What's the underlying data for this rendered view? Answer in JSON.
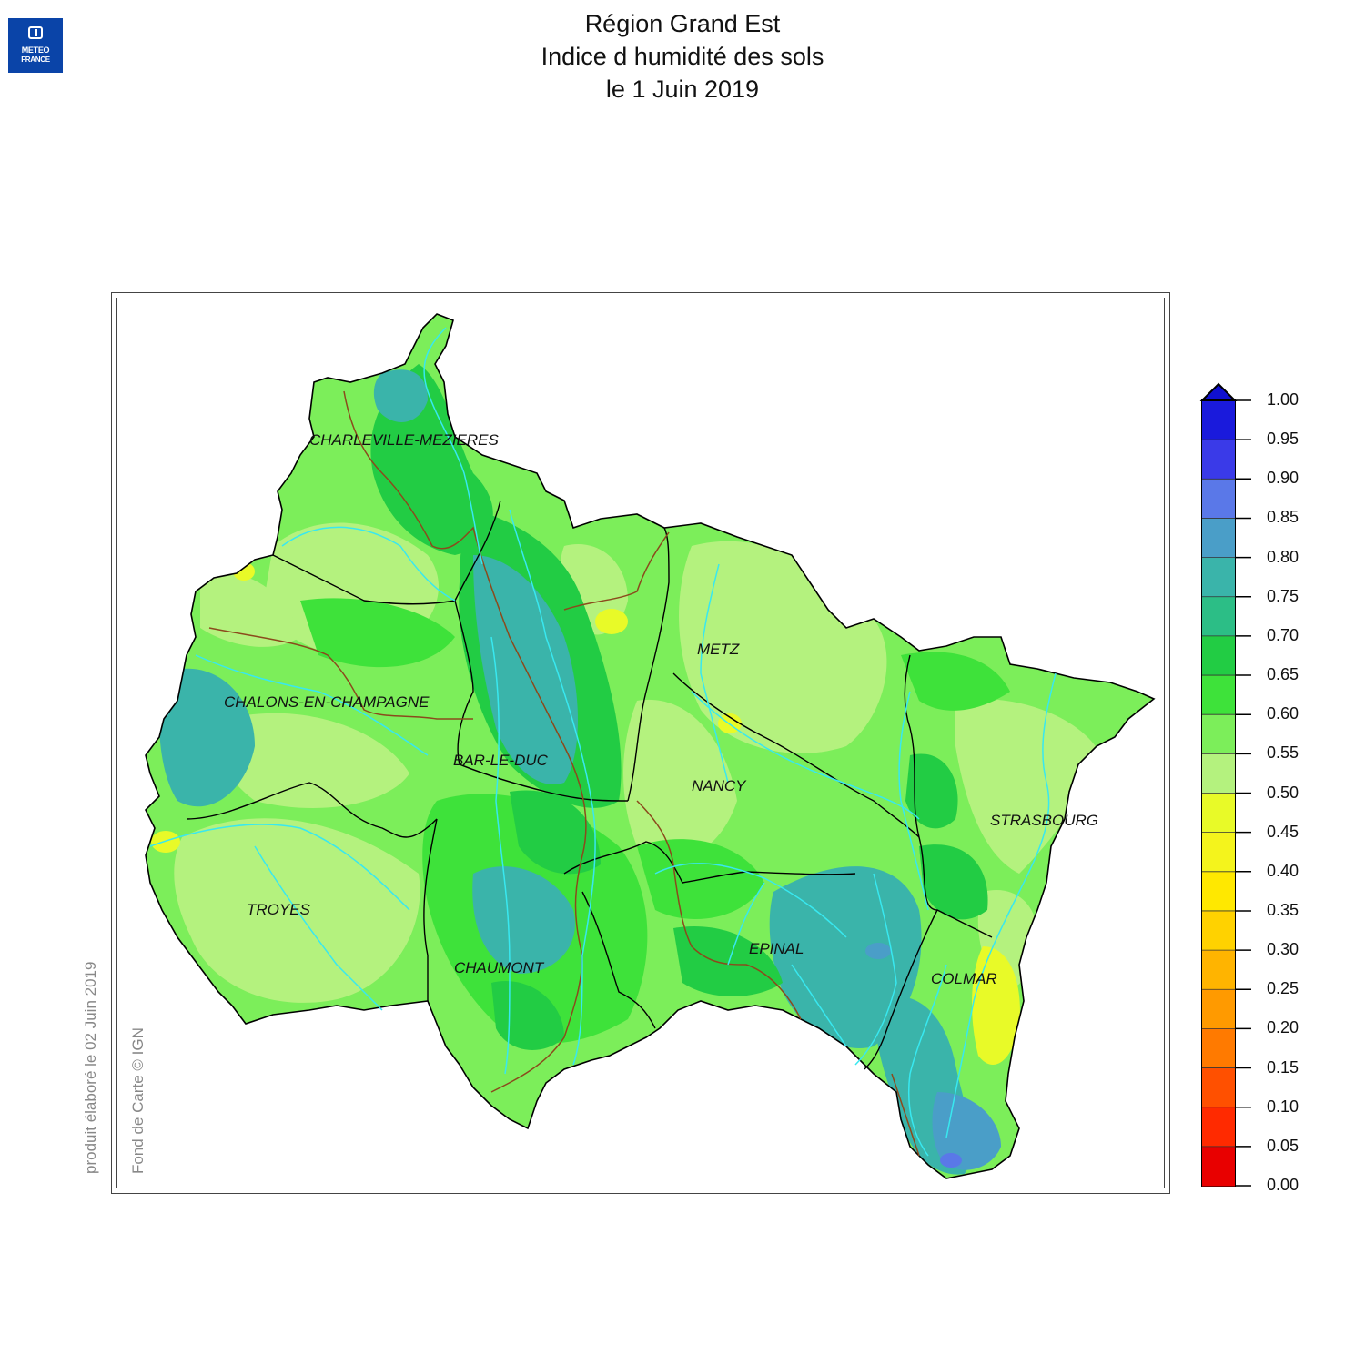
{
  "logo": {
    "line1": "METEO",
    "line2": "FRANCE"
  },
  "title": {
    "line1": "Région Grand Est",
    "line2": "Indice d humidité des sols",
    "line3": "le 1 Juin 2019"
  },
  "side_notes": {
    "produced": "produit élaboré le 02 Juin 2019",
    "credit": "Fond de Carte © IGN"
  },
  "cities": [
    {
      "key": "charleville",
      "name": "CHARLEVILLE-MEZIERES"
    },
    {
      "key": "metz",
      "name": "METZ"
    },
    {
      "key": "chalons",
      "name": "CHALONS-EN-CHAMPAGNE"
    },
    {
      "key": "barleduc",
      "name": "BAR-LE-DUC"
    },
    {
      "key": "nancy",
      "name": "NANCY"
    },
    {
      "key": "strasbourg",
      "name": "STRASBOURG"
    },
    {
      "key": "troyes",
      "name": "TROYES"
    },
    {
      "key": "epinal",
      "name": "EPINAL"
    },
    {
      "key": "chaumont",
      "name": "CHAUMONT"
    },
    {
      "key": "colmar",
      "name": "COLMAR"
    }
  ],
  "legend": {
    "labels": [
      "1.00",
      "0.95",
      "0.90",
      "0.85",
      "0.80",
      "0.75",
      "0.70",
      "0.65",
      "0.60",
      "0.55",
      "0.50",
      "0.45",
      "0.40",
      "0.35",
      "0.30",
      "0.25",
      "0.20",
      "0.15",
      "0.10",
      "0.05",
      "0.00"
    ],
    "colors_top_to_bottom": [
      "#1a1adc",
      "#3a3ae8",
      "#5a78e8",
      "#4a9ec8",
      "#3ab4aa",
      "#2cbe86",
      "#22cc44",
      "#3ee23a",
      "#7cee5a",
      "#b4f27e",
      "#e8fa28",
      "#f4f41c",
      "#ffe800",
      "#ffd200",
      "#ffb400",
      "#ff9a00",
      "#ff7a00",
      "#ff5000",
      "#ff2a00",
      "#e80000"
    ],
    "arrow_color": "#1010d0"
  },
  "colors": {
    "light_green": "#b4f27e",
    "green": "#7cee5a",
    "mid_green": "#3ee23a",
    "dark_green": "#22cc44",
    "teal": "#3ab4aa",
    "yellow": "#e8fa28",
    "river": "#38e8f0",
    "border_dept": "#000000",
    "border_basin": "#8b4a1c"
  }
}
